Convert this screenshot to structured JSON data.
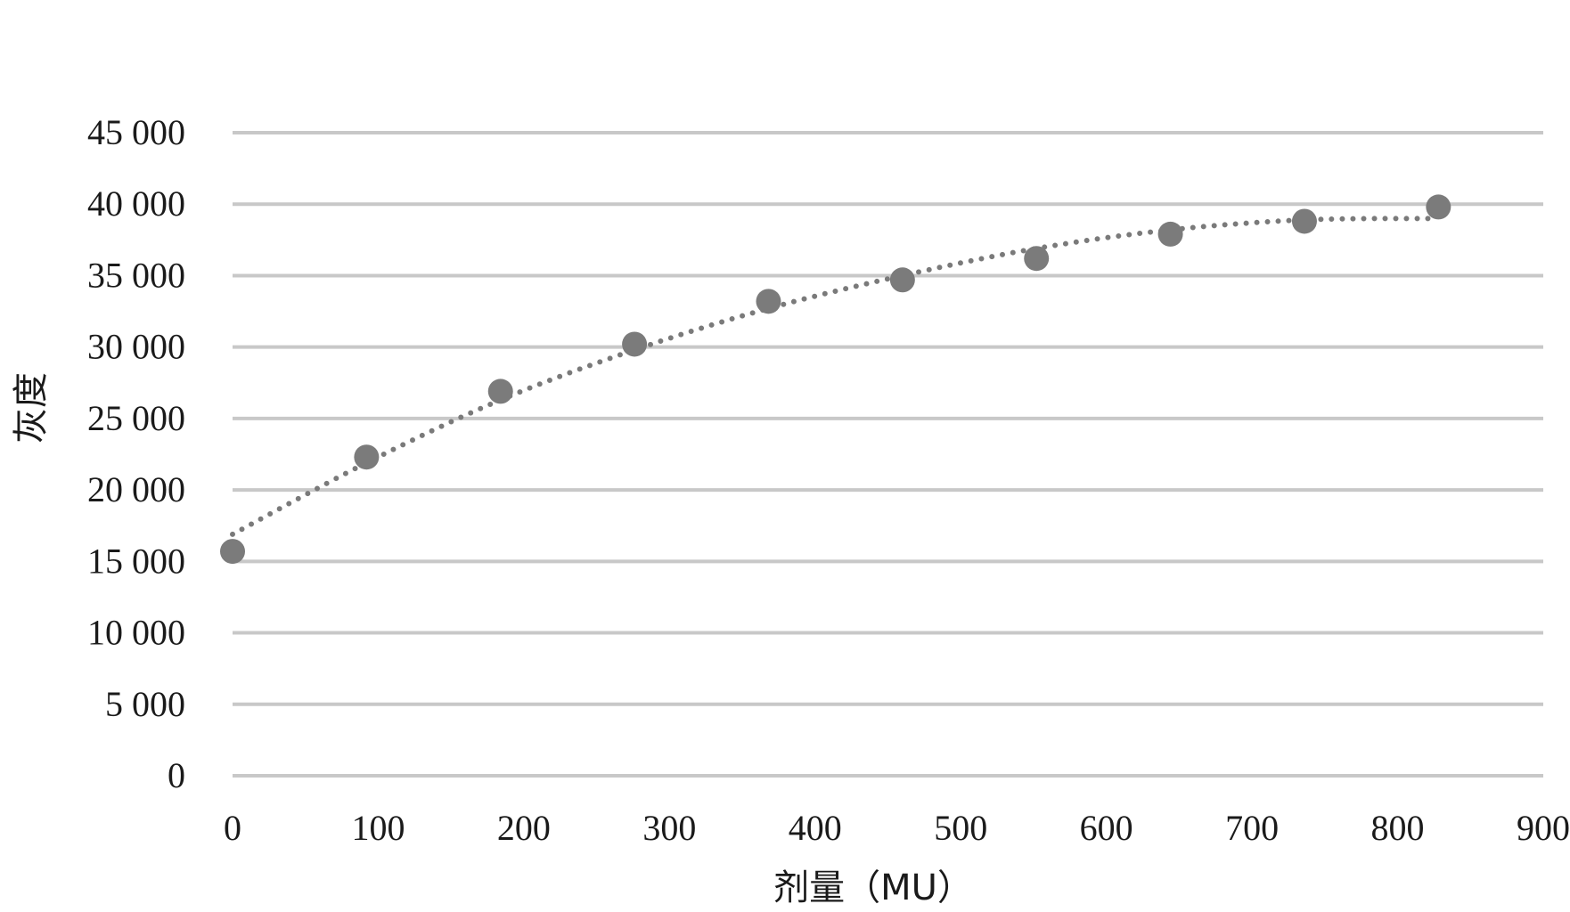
{
  "chart_data": {
    "type": "scatter",
    "title": "",
    "xlabel": "剂量（MU）",
    "ylabel": "灰度",
    "xlim": [
      0,
      900
    ],
    "ylim": [
      0,
      45000
    ],
    "x_ticks": [
      "0",
      "100",
      "200",
      "300",
      "400",
      "500",
      "600",
      "700",
      "800",
      "900"
    ],
    "y_ticks": [
      "0",
      "5 000",
      "10 000",
      "15 000",
      "20 000",
      "25 000",
      "30 000",
      "35 000",
      "40 000",
      "45 000"
    ],
    "grid": true,
    "legend": "none",
    "colors": {
      "points": "#7b7b7b",
      "trendline": "#7a7a7a",
      "grid": "#c8c8c8"
    },
    "series": [
      {
        "x": [
          0,
          92,
          184,
          276,
          368,
          460,
          552,
          644,
          736,
          828
        ],
        "y": [
          15700,
          22300,
          26900,
          30200,
          33200,
          34700,
          36200,
          37900,
          38800,
          39800
        ]
      }
    ],
    "trendline": {
      "style": "dotted",
      "x": [
        0,
        92,
        184,
        276,
        368,
        460,
        552,
        644,
        736,
        828
      ],
      "y": [
        16900,
        21900,
        26300,
        29800,
        32700,
        35000,
        36900,
        38200,
        38900,
        39000
      ]
    }
  }
}
